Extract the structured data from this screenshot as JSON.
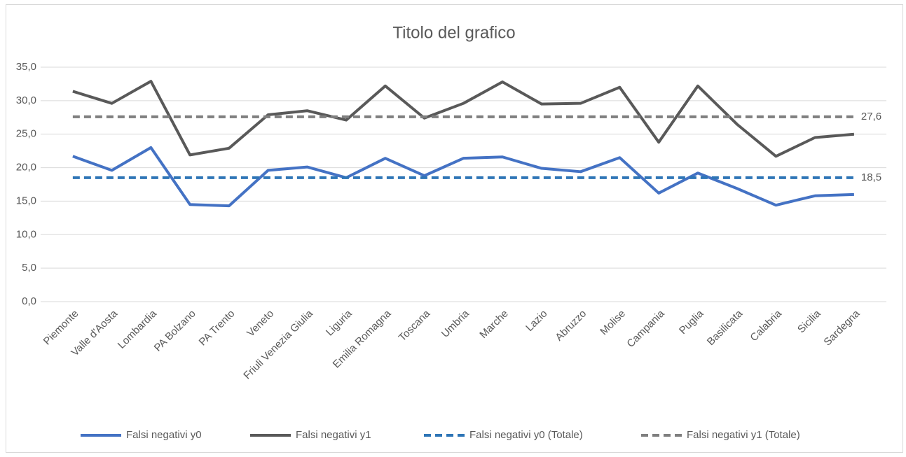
{
  "chart_data": {
    "type": "line",
    "title": "Titolo del grafico",
    "categories": [
      "Piemonte",
      "Valle d'Aosta",
      "Lombardia",
      "PA Bolzano",
      "PA Trento",
      "Veneto",
      "Friuli Venezia Giulia",
      "Liguria",
      "Emilia Romagna",
      "Toscana",
      "Umbria",
      "Marche",
      "Lazio",
      "Abruzzo",
      "Molise",
      "Campania",
      "Puglia",
      "Basilicata",
      "Calabria",
      "Sicilia",
      "Sardegna"
    ],
    "series": [
      {
        "name": "Falsi negativi y0",
        "color": "#4472c4",
        "dash": false,
        "values": [
          21.7,
          19.6,
          23.0,
          14.5,
          14.3,
          19.6,
          20.1,
          18.5,
          21.4,
          18.8,
          21.4,
          21.6,
          19.9,
          19.4,
          21.5,
          16.2,
          19.2,
          16.9,
          14.4,
          15.8,
          16.0
        ]
      },
      {
        "name": "Falsi negativi y1",
        "color": "#595959",
        "dash": false,
        "values": [
          31.4,
          29.6,
          32.9,
          21.9,
          22.9,
          27.9,
          28.5,
          27.1,
          32.2,
          27.4,
          29.6,
          32.8,
          29.5,
          29.6,
          32.0,
          23.8,
          32.2,
          26.5,
          21.7,
          24.5,
          25.0
        ]
      },
      {
        "name": "Falsi negativi y0 (Totale)",
        "color": "#2e75b6",
        "dash": true,
        "values": [
          18.5,
          18.5,
          18.5,
          18.5,
          18.5,
          18.5,
          18.5,
          18.5,
          18.5,
          18.5,
          18.5,
          18.5,
          18.5,
          18.5,
          18.5,
          18.5,
          18.5,
          18.5,
          18.5,
          18.5,
          18.5
        ],
        "value_labels": [
          null,
          null,
          null,
          null,
          null,
          null,
          null,
          null,
          null,
          null,
          null,
          null,
          null,
          null,
          null,
          null,
          null,
          null,
          null,
          null,
          "18,5"
        ]
      },
      {
        "name": "Falsi negativi y1 (Totale)",
        "color": "#7f7f7f",
        "dash": true,
        "values": [
          27.6,
          27.6,
          27.6,
          27.6,
          27.6,
          27.6,
          27.6,
          27.6,
          27.6,
          27.6,
          27.6,
          27.6,
          27.6,
          27.6,
          27.6,
          27.6,
          27.6,
          27.6,
          27.6,
          27.6,
          27.6
        ],
        "value_labels": [
          null,
          null,
          null,
          null,
          null,
          null,
          null,
          null,
          null,
          null,
          null,
          null,
          null,
          null,
          null,
          null,
          null,
          null,
          null,
          null,
          "27,6"
        ]
      }
    ],
    "ylim": [
      0,
      35
    ],
    "yticks": [
      {
        "value": 0,
        "label": "0,0"
      },
      {
        "value": 5,
        "label": "5,0"
      },
      {
        "value": 10,
        "label": "10,0"
      },
      {
        "value": 15,
        "label": "15,0"
      },
      {
        "value": 20,
        "label": "20,0"
      },
      {
        "value": 25,
        "label": "25,0"
      },
      {
        "value": 30,
        "label": "30,0"
      },
      {
        "value": 35,
        "label": "35,0"
      }
    ],
    "grid": true,
    "legend": "bottom"
  }
}
